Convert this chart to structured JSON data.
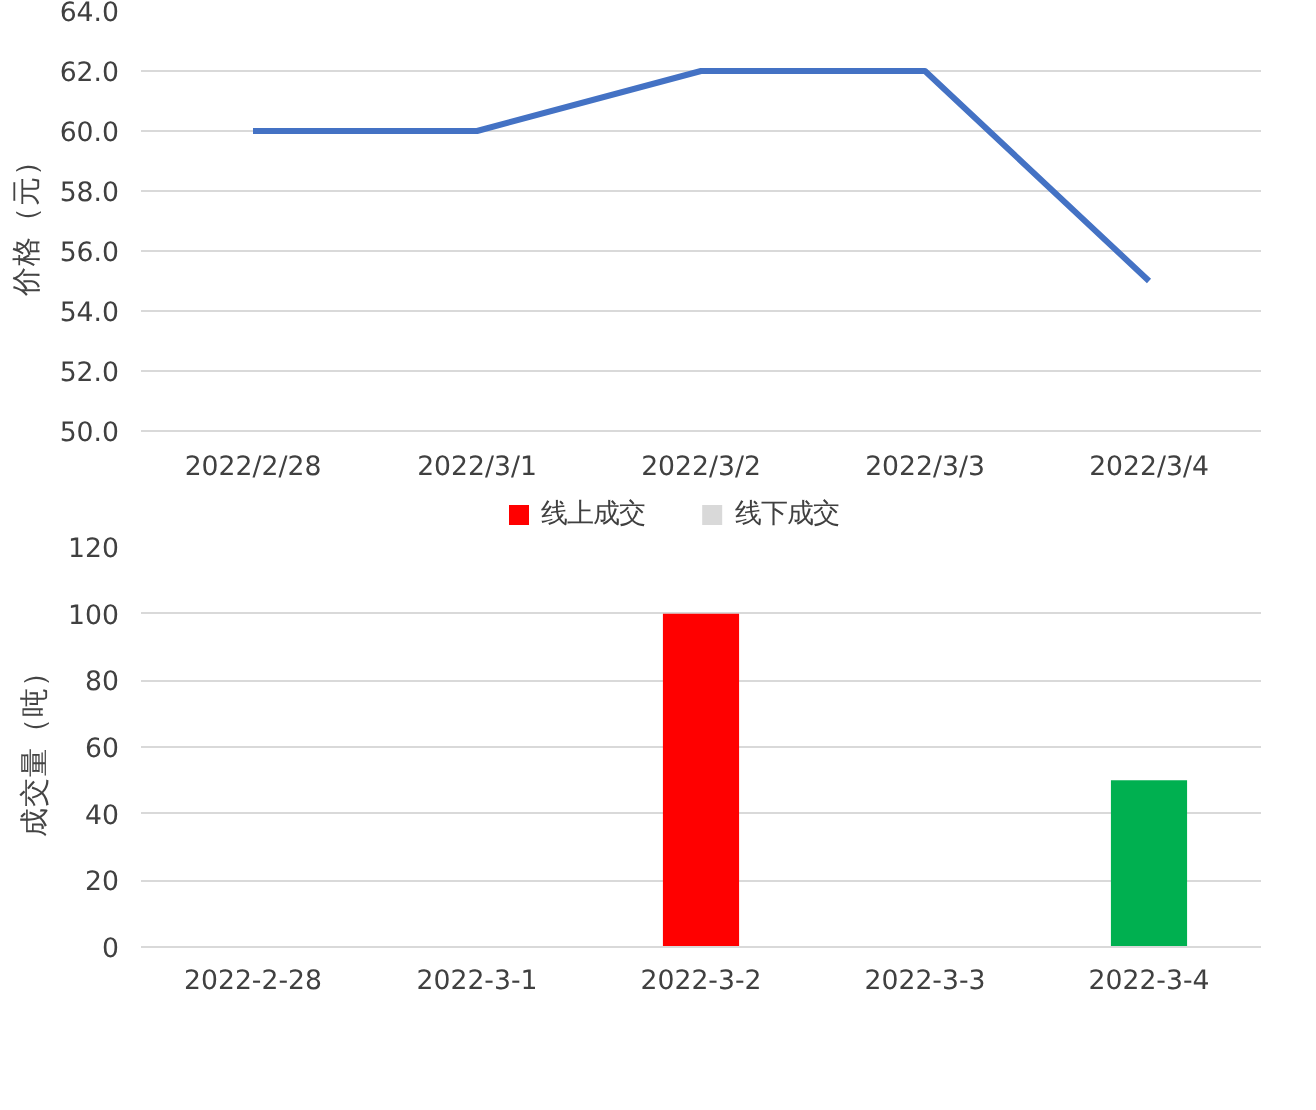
{
  "chart_data": [
    {
      "type": "line",
      "ylabel": "价格（元）",
      "categories": [
        "2022/2/28",
        "2022/3/1",
        "2022/3/2",
        "2022/3/3",
        "2022/3/4"
      ],
      "series": [
        {
          "color": "#4472c4",
          "values": [
            60,
            60,
            62,
            62,
            55
          ]
        }
      ],
      "ylim": [
        50,
        64
      ],
      "yticks": [
        {
          "value": 50,
          "label": "50.0"
        },
        {
          "value": 52,
          "label": "52.0"
        },
        {
          "value": 54,
          "label": "54.0"
        },
        {
          "value": 56,
          "label": "56.0"
        },
        {
          "value": 58,
          "label": "58.0"
        },
        {
          "value": 60,
          "label": "60.0"
        },
        {
          "value": 62,
          "label": "62.0"
        },
        {
          "value": 64,
          "label": "64.0"
        }
      ],
      "grid": "y",
      "marker": "none",
      "line_style": "solid"
    },
    {
      "type": "bar",
      "ylabel": "成交量（吨）",
      "categories": [
        "2022-2-28",
        "2022-3-1",
        "2022-3-2",
        "2022-3-3",
        "2022-3-4"
      ],
      "series": [
        {
          "name": "线上成交",
          "color": "#ff0000",
          "colors": [
            "#ff0000",
            "#ff0000",
            "#ff0000",
            "#ff0000",
            "#00b050"
          ],
          "values": [
            null,
            null,
            100,
            null,
            50
          ]
        },
        {
          "name": "线下成交",
          "color": "#d9d9d9",
          "values": [
            null,
            null,
            null,
            null,
            null
          ]
        }
      ],
      "ylim": [
        0,
        120
      ],
      "yticks": [
        0,
        20,
        40,
        60,
        80,
        100,
        120
      ],
      "grid": "y",
      "legend": "top"
    }
  ]
}
